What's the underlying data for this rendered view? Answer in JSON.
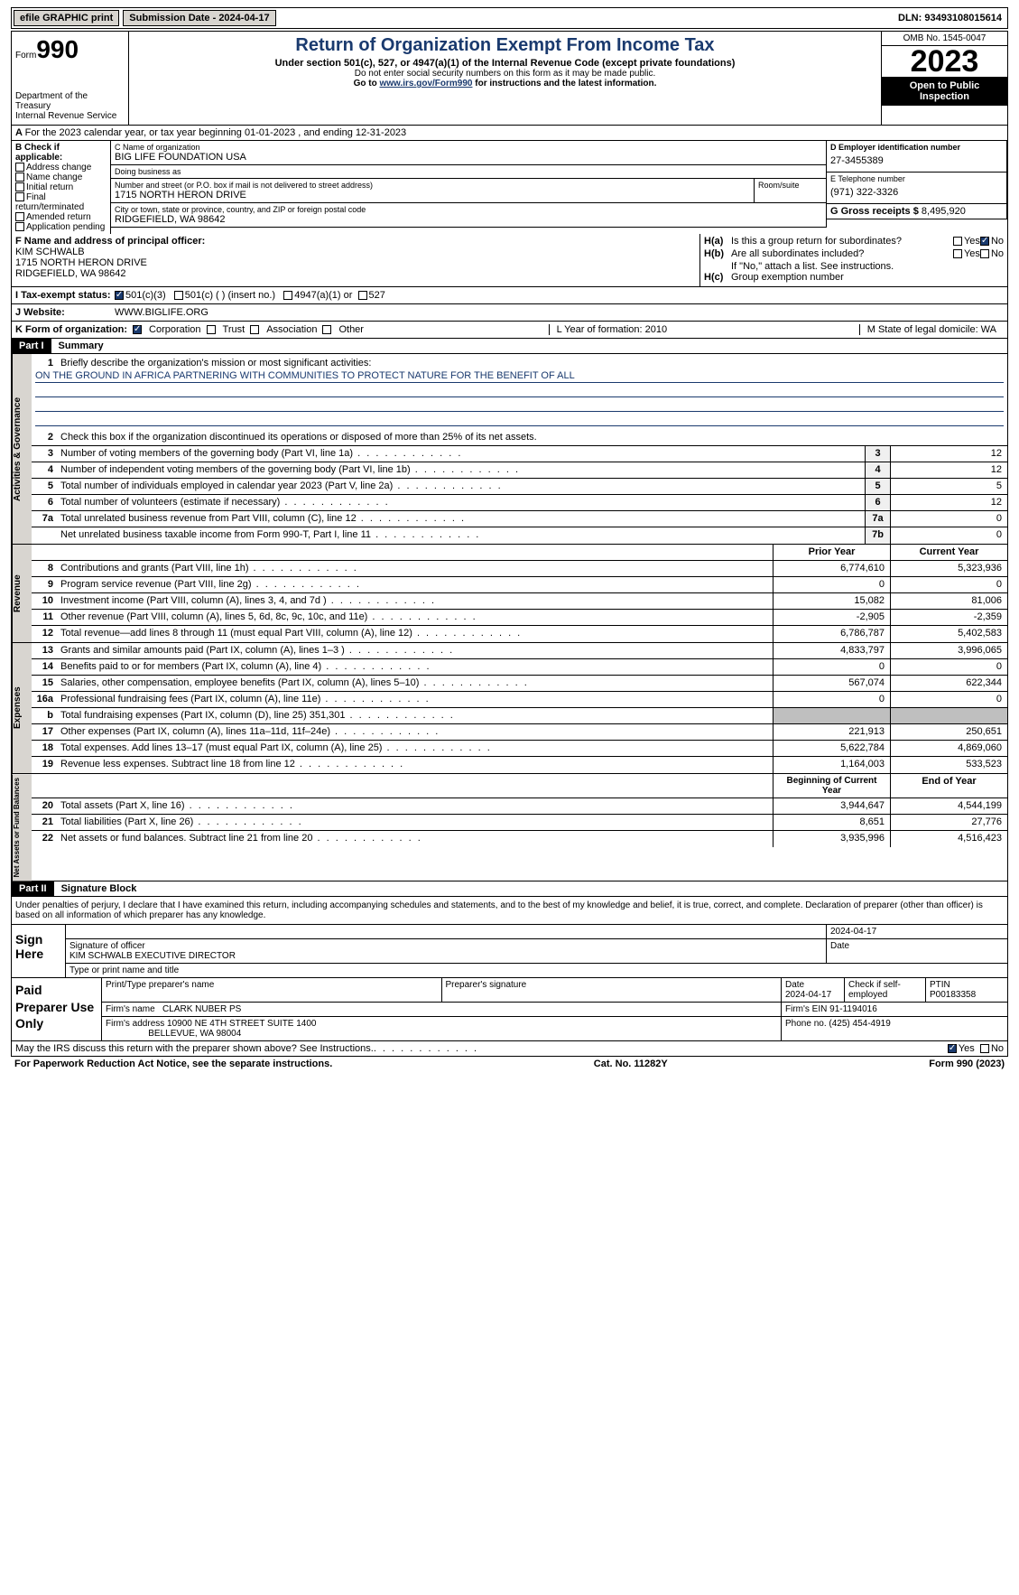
{
  "topbar": {
    "efile": "efile GRAPHIC print",
    "submission": "Submission Date - 2024-04-17",
    "dln": "DLN: 93493108015614"
  },
  "header": {
    "form": "Form",
    "form_num": "990",
    "dept1": "Department of the Treasury",
    "dept2": "Internal Revenue Service",
    "title": "Return of Organization Exempt From Income Tax",
    "subtitle": "Under section 501(c), 527, or 4947(a)(1) of the Internal Revenue Code (except private foundations)",
    "note1": "Do not enter social security numbers on this form as it may be made public.",
    "note2_pre": "Go to ",
    "note2_link": "www.irs.gov/Form990",
    "note2_post": " for instructions and the latest information.",
    "omb": "OMB No. 1545-0047",
    "year": "2023",
    "inspection": "Open to Public Inspection"
  },
  "row_a": "For the 2023 calendar year, or tax year beginning 01-01-2023   , and ending 12-31-2023",
  "box_b": {
    "hdr": "B Check if applicable:",
    "opts": [
      "Address change",
      "Name change",
      "Initial return",
      "Final return/terminated",
      "Amended return",
      "Application pending"
    ]
  },
  "box_c": {
    "name_lbl": "C Name of organization",
    "name": "BIG LIFE FOUNDATION USA",
    "dba_lbl": "Doing business as",
    "dba": "",
    "addr_lbl": "Number and street (or P.O. box if mail is not delivered to street address)",
    "room_lbl": "Room/suite",
    "addr": "1715 NORTH HERON DRIVE",
    "city_lbl": "City or town, state or province, country, and ZIP or foreign postal code",
    "city": "RIDGEFIELD, WA  98642"
  },
  "box_d": {
    "lbl": "D Employer identification number",
    "val": "27-3455389"
  },
  "box_e": {
    "lbl": "E Telephone number",
    "val": "(971) 322-3326"
  },
  "box_g": {
    "lbl": "G Gross receipts $",
    "val": "8,495,920"
  },
  "box_f": {
    "lbl": "F  Name and address of principal officer:",
    "name": "KIM SCHWALB",
    "addr1": "1715 NORTH HERON DRIVE",
    "addr2": "RIDGEFIELD, WA  98642"
  },
  "box_h": {
    "a_lbl": "H(a)",
    "a_txt": "Is this a group return for subordinates?",
    "a_yes": "Yes",
    "a_no": "No",
    "b_lbl": "H(b)",
    "b_txt": "Are all subordinates included?",
    "b_note": "If \"No,\" attach a list. See instructions.",
    "c_lbl": "H(c)",
    "c_txt": "Group exemption number"
  },
  "status": {
    "lbl": "I    Tax-exempt status:",
    "opts": [
      "501(c)(3)",
      "501(c) (  ) (insert no.)",
      "4947(a)(1) or",
      "527"
    ]
  },
  "website": {
    "lbl": "J    Website:",
    "val": "WWW.BIGLIFE.ORG"
  },
  "korg": {
    "lbl": "K Form of organization:",
    "opts": [
      "Corporation",
      "Trust",
      "Association",
      "Other"
    ],
    "l": "L Year of formation: 2010",
    "m": "M State of legal domicile: WA"
  },
  "part1": {
    "hdr": "Part I",
    "title": "Summary"
  },
  "mission": {
    "lbl": "Briefly describe the organization's mission or most significant activities:",
    "txt": "ON THE GROUND IN AFRICA PARTNERING WITH COMMUNITIES TO PROTECT NATURE FOR THE BENEFIT OF ALL"
  },
  "gov": {
    "vtab": "Activities & Governance",
    "line2": "Check this box      if the organization discontinued its operations or disposed of more than 25% of its net assets.",
    "rows": [
      {
        "n": "3",
        "t": "Number of voting members of the governing body (Part VI, line 1a)",
        "b": "3",
        "v": "12"
      },
      {
        "n": "4",
        "t": "Number of independent voting members of the governing body (Part VI, line 1b)",
        "b": "4",
        "v": "12"
      },
      {
        "n": "5",
        "t": "Total number of individuals employed in calendar year 2023 (Part V, line 2a)",
        "b": "5",
        "v": "5"
      },
      {
        "n": "6",
        "t": "Total number of volunteers (estimate if necessary)",
        "b": "6",
        "v": "12"
      },
      {
        "n": "7a",
        "t": "Total unrelated business revenue from Part VIII, column (C), line 12",
        "b": "7a",
        "v": "0"
      },
      {
        "n": "",
        "t": "Net unrelated business taxable income from Form 990-T, Part I, line 11",
        "b": "7b",
        "v": "0"
      }
    ]
  },
  "rev": {
    "vtab": "Revenue",
    "hdr_prior": "Prior Year",
    "hdr_curr": "Current Year",
    "rows": [
      {
        "n": "8",
        "t": "Contributions and grants (Part VIII, line 1h)",
        "p": "6,774,610",
        "c": "5,323,936"
      },
      {
        "n": "9",
        "t": "Program service revenue (Part VIII, line 2g)",
        "p": "0",
        "c": "0"
      },
      {
        "n": "10",
        "t": "Investment income (Part VIII, column (A), lines 3, 4, and 7d )",
        "p": "15,082",
        "c": "81,006"
      },
      {
        "n": "11",
        "t": "Other revenue (Part VIII, column (A), lines 5, 6d, 8c, 9c, 10c, and 11e)",
        "p": "-2,905",
        "c": "-2,359"
      },
      {
        "n": "12",
        "t": "Total revenue—add lines 8 through 11 (must equal Part VIII, column (A), line 12)",
        "p": "6,786,787",
        "c": "5,402,583"
      }
    ]
  },
  "exp": {
    "vtab": "Expenses",
    "rows": [
      {
        "n": "13",
        "t": "Grants and similar amounts paid (Part IX, column (A), lines 1–3 )",
        "p": "4,833,797",
        "c": "3,996,065"
      },
      {
        "n": "14",
        "t": "Benefits paid to or for members (Part IX, column (A), line 4)",
        "p": "0",
        "c": "0"
      },
      {
        "n": "15",
        "t": "Salaries, other compensation, employee benefits (Part IX, column (A), lines 5–10)",
        "p": "567,074",
        "c": "622,344"
      },
      {
        "n": "16a",
        "t": "Professional fundraising fees (Part IX, column (A), line 11e)",
        "p": "0",
        "c": "0"
      },
      {
        "n": "b",
        "t": "Total fundraising expenses (Part IX, column (D), line 25) 351,301",
        "p": "",
        "c": "",
        "shaded": true
      },
      {
        "n": "17",
        "t": "Other expenses (Part IX, column (A), lines 11a–11d, 11f–24e)",
        "p": "221,913",
        "c": "250,651"
      },
      {
        "n": "18",
        "t": "Total expenses. Add lines 13–17 (must equal Part IX, column (A), line 25)",
        "p": "5,622,784",
        "c": "4,869,060"
      },
      {
        "n": "19",
        "t": "Revenue less expenses. Subtract line 18 from line 12",
        "p": "1,164,003",
        "c": "533,523"
      }
    ]
  },
  "net": {
    "vtab": "Net Assets or Fund Balances",
    "hdr_beg": "Beginning of Current Year",
    "hdr_end": "End of Year",
    "rows": [
      {
        "n": "20",
        "t": "Total assets (Part X, line 16)",
        "p": "3,944,647",
        "c": "4,544,199"
      },
      {
        "n": "21",
        "t": "Total liabilities (Part X, line 26)",
        "p": "8,651",
        "c": "27,776"
      },
      {
        "n": "22",
        "t": "Net assets or fund balances. Subtract line 21 from line 20",
        "p": "3,935,996",
        "c": "4,516,423"
      }
    ]
  },
  "part2": {
    "hdr": "Part II",
    "title": "Signature Block"
  },
  "sig_text": "Under penalties of perjury, I declare that I have examined this return, including accompanying schedules and statements, and to the best of my knowledge and belief, it is true, correct, and complete. Declaration of preparer (other than officer) is based on all information of which preparer has any knowledge.",
  "sign": {
    "left": "Sign Here",
    "date": "2024-04-17",
    "sig_lbl": "Signature of officer",
    "name": "KIM SCHWALB  EXECUTIVE DIRECTOR",
    "name_lbl": "Type or print name and title",
    "date_lbl": "Date"
  },
  "paid": {
    "left": "Paid Preparer Use Only",
    "h1": "Print/Type preparer's name",
    "h2": "Preparer's signature",
    "h3": "Date",
    "h3v": "2024-04-17",
    "h4": "Check      if self-employed",
    "h5": "PTIN",
    "h5v": "P00183358",
    "firm_lbl": "Firm's name",
    "firm": "CLARK NUBER PS",
    "ein_lbl": "Firm's EIN",
    "ein": "91-1194016",
    "addr_lbl": "Firm's address",
    "addr1": "10900 NE 4TH STREET SUITE 1400",
    "addr2": "BELLEVUE, WA  98004",
    "phone_lbl": "Phone no.",
    "phone": "(425) 454-4919"
  },
  "discuss": {
    "txt": "May the IRS discuss this return with the preparer shown above? See Instructions.",
    "yes": "Yes",
    "no": "No"
  },
  "footer": {
    "pra": "For Paperwork Reduction Act Notice, see the separate instructions.",
    "cat": "Cat. No. 11282Y",
    "form": "Form 990 (2023)"
  }
}
